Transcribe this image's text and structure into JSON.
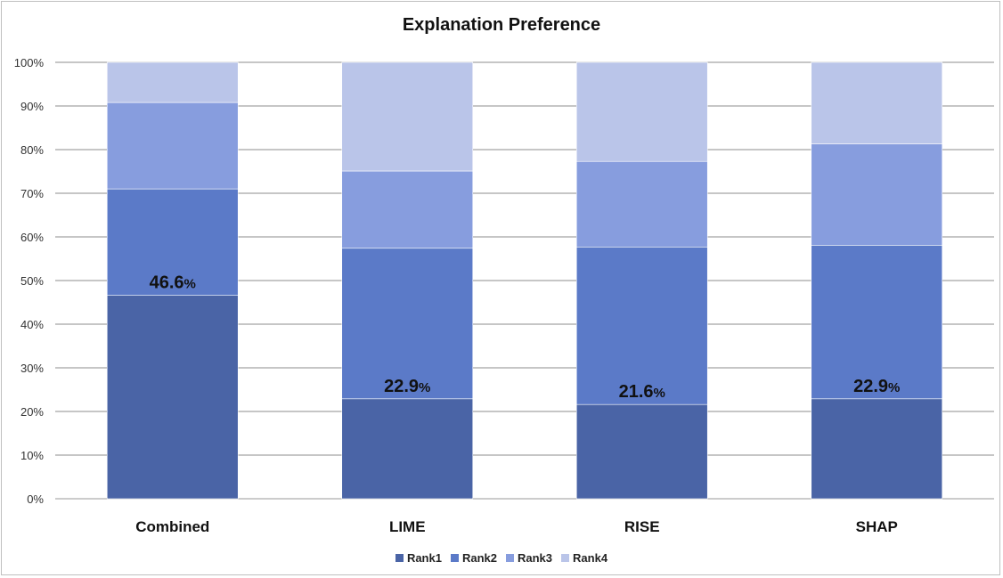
{
  "chart_data": {
    "type": "bar",
    "stacked": true,
    "title": "Explanation Preference",
    "categories": [
      "Combined",
      "LIME",
      "RISE",
      "SHAP"
    ],
    "series": [
      {
        "name": "Rank1",
        "color": "#4a64a6",
        "values": [
          46.6,
          22.9,
          21.6,
          22.9
        ]
      },
      {
        "name": "Rank2",
        "color": "#5b7ac8",
        "values": [
          24.4,
          34.5,
          36.1,
          35.2
        ]
      },
      {
        "name": "Rank3",
        "color": "#879dde",
        "values": [
          19.8,
          17.7,
          19.6,
          23.2
        ]
      },
      {
        "name": "Rank4",
        "color": "#bac5e9",
        "values": [
          9.2,
          24.9,
          22.7,
          18.7
        ]
      }
    ],
    "data_labels": [
      {
        "category": "Combined",
        "value": "46.6",
        "unit": "%"
      },
      {
        "category": "LIME",
        "value": "22.9",
        "unit": "%"
      },
      {
        "category": "RISE",
        "value": "21.6",
        "unit": "%"
      },
      {
        "category": "SHAP",
        "value": "22.9",
        "unit": "%"
      }
    ],
    "y_ticks": [
      "0%",
      "10%",
      "20%",
      "30%",
      "40%",
      "50%",
      "60%",
      "70%",
      "80%",
      "90%",
      "100%"
    ],
    "ylim": [
      0,
      100
    ],
    "grid": true,
    "legend_position": "bottom"
  }
}
